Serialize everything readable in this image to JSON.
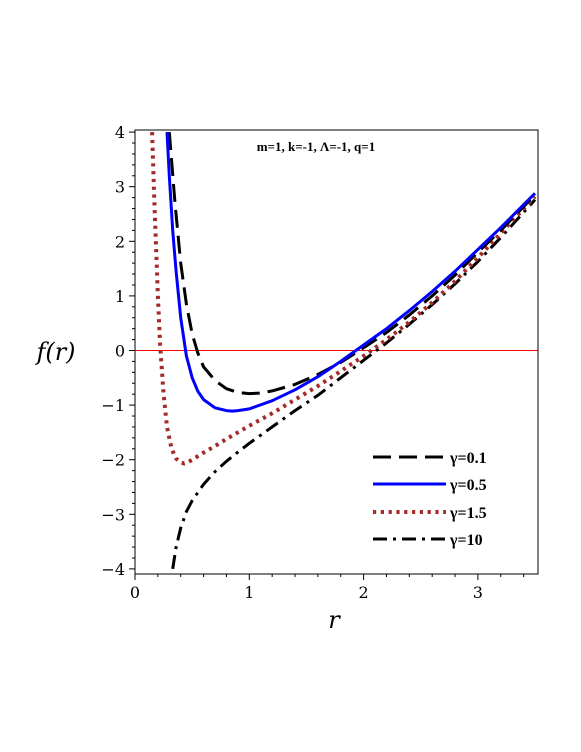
{
  "chart_data": {
    "type": "line",
    "title": "",
    "annotation": "m=1, k=-1, Λ=-1, q=1",
    "xlabel": "r",
    "ylabel": "f(r)",
    "xlim": [
      0,
      3.5
    ],
    "ylim": [
      -4,
      4
    ],
    "x_ticks": [
      "0",
      "1",
      "2",
      "3"
    ],
    "y_ticks": [
      "−4",
      "−3",
      "−2",
      "−1",
      "0",
      "1",
      "2",
      "3",
      "4"
    ],
    "grid": false,
    "legend_position": "bottom-right",
    "series": [
      {
        "name": "γ=0.1",
        "color": "#000000",
        "dash": "long-dash",
        "x": [
          0.3,
          0.35,
          0.4,
          0.45,
          0.5,
          0.55,
          0.6,
          0.7,
          0.8,
          0.9,
          1.0,
          1.1,
          1.2,
          1.4,
          1.6,
          1.8,
          2.0,
          2.2,
          2.4,
          2.6,
          2.8,
          3.0,
          3.2,
          3.5
        ],
        "y": [
          4.0,
          2.7,
          1.6,
          0.85,
          0.3,
          -0.05,
          -0.3,
          -0.55,
          -0.7,
          -0.77,
          -0.79,
          -0.78,
          -0.74,
          -0.62,
          -0.44,
          -0.22,
          0.05,
          0.33,
          0.65,
          1.0,
          1.38,
          1.8,
          2.2,
          2.85
        ]
      },
      {
        "name": "γ=0.5",
        "color": "#0000ff",
        "dash": "solid",
        "x": [
          0.28,
          0.3,
          0.33,
          0.36,
          0.4,
          0.45,
          0.5,
          0.55,
          0.6,
          0.7,
          0.8,
          0.85,
          0.9,
          1.0,
          1.2,
          1.4,
          1.6,
          1.8,
          2.0,
          2.2,
          2.4,
          2.6,
          2.8,
          3.0,
          3.2,
          3.5
        ],
        "y": [
          4.0,
          3.2,
          2.2,
          1.45,
          0.6,
          -0.1,
          -0.5,
          -0.75,
          -0.9,
          -1.05,
          -1.1,
          -1.11,
          -1.1,
          -1.07,
          -0.92,
          -0.72,
          -0.48,
          -0.2,
          0.1,
          0.4,
          0.73,
          1.08,
          1.45,
          1.85,
          2.25,
          2.88
        ]
      },
      {
        "name": "γ=1.5",
        "color": "#a52a2a",
        "dash": "dotted",
        "x": [
          0.15,
          0.17,
          0.2,
          0.22,
          0.25,
          0.28,
          0.32,
          0.36,
          0.4,
          0.43,
          0.46,
          0.5,
          0.6,
          0.7,
          0.8,
          1.0,
          1.2,
          1.4,
          1.6,
          1.8,
          2.0,
          2.2,
          2.4,
          2.6,
          2.8,
          3.0,
          3.2,
          3.5
        ],
        "y": [
          4.0,
          2.7,
          1.0,
          0.1,
          -0.8,
          -1.4,
          -1.8,
          -1.98,
          -2.05,
          -2.07,
          -2.05,
          -2.0,
          -1.87,
          -1.75,
          -1.62,
          -1.38,
          -1.15,
          -0.9,
          -0.65,
          -0.38,
          -0.1,
          0.2,
          0.52,
          0.88,
          1.27,
          1.7,
          2.15,
          2.82
        ]
      },
      {
        "name": "γ=10",
        "color": "#000000",
        "dash": "dash-dot",
        "x": [
          0.33,
          0.36,
          0.4,
          0.45,
          0.5,
          0.6,
          0.7,
          0.8,
          0.9,
          1.0,
          1.2,
          1.4,
          1.6,
          1.8,
          2.0,
          2.2,
          2.4,
          2.6,
          2.8,
          3.0,
          3.2,
          3.5
        ],
        "y": [
          -4.0,
          -3.6,
          -3.25,
          -2.95,
          -2.75,
          -2.45,
          -2.22,
          -2.03,
          -1.86,
          -1.7,
          -1.4,
          -1.1,
          -0.82,
          -0.5,
          -0.18,
          0.14,
          0.48,
          0.84,
          1.22,
          1.63,
          2.07,
          2.76
        ]
      }
    ],
    "reference_line": {
      "y": 0,
      "color": "#ff0000"
    }
  }
}
